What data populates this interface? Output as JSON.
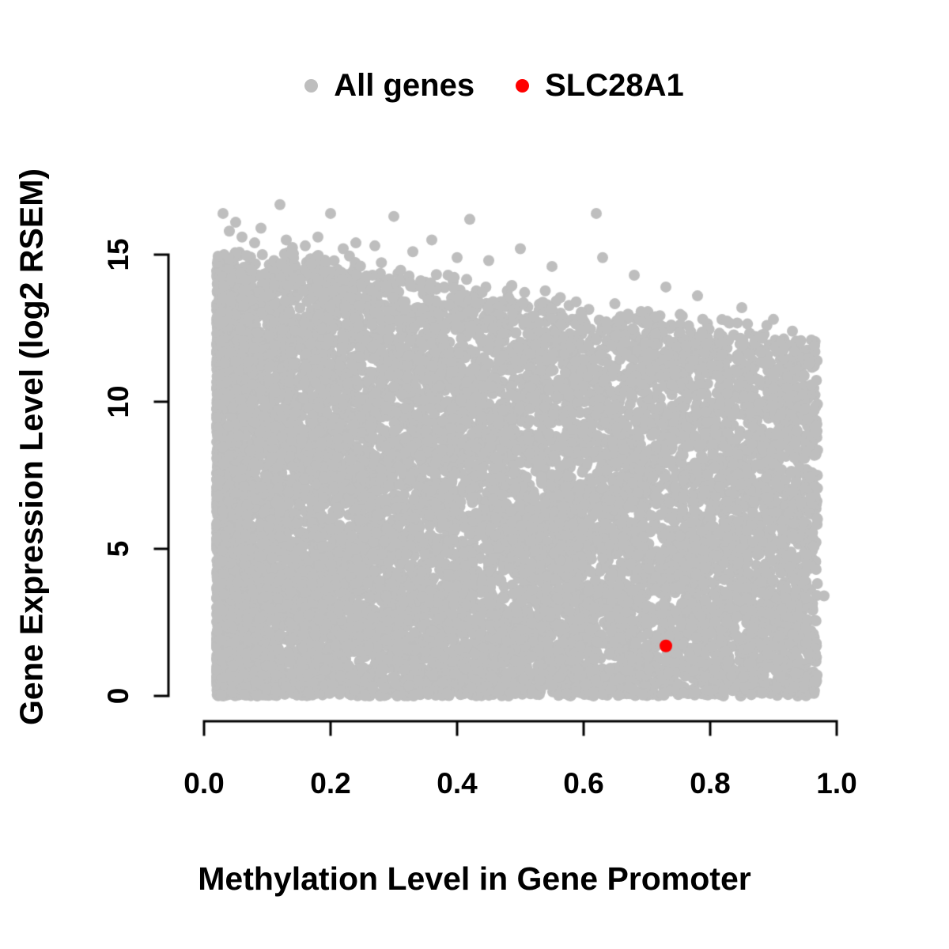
{
  "chart_data": {
    "type": "scatter",
    "title": "",
    "xlabel": "Methylation Level in Gene Promoter",
    "ylabel": "Gene Expression Level (log2 RSEM)",
    "xlim": [
      0,
      1
    ],
    "ylim": [
      0,
      17
    ],
    "grid": false,
    "x_ticks": [
      0,
      0.2,
      0.4,
      0.6,
      0.8,
      1.0
    ],
    "x_tick_labels": [
      "0.0",
      "0.2",
      "0.4",
      "0.6",
      "0.8",
      "1.0"
    ],
    "y_ticks": [
      0,
      5,
      10,
      15
    ],
    "y_tick_labels": [
      "0",
      "5",
      "10",
      "15"
    ],
    "axis_color": "#000000",
    "legend": {
      "position": "top",
      "entries": [
        {
          "label": "All genes",
          "color": "#bebebe"
        },
        {
          "label": "SLC28A1",
          "color": "#ff0000"
        }
      ]
    },
    "series": [
      {
        "name": "All genes",
        "color": "#bebebe",
        "type": "dense-cloud",
        "n_points": 12000,
        "seed": 42,
        "x_range": [
          0.02,
          0.97
        ],
        "envelope_x": [
          0,
          0.15,
          0.3,
          0.45,
          0.6,
          0.8,
          0.97
        ],
        "envelope_y": [
          15.2,
          15.0,
          14.6,
          14.0,
          13.3,
          12.7,
          12.1
        ],
        "outliers": [
          [
            0.03,
            16.4
          ],
          [
            0.04,
            15.8
          ],
          [
            0.05,
            16.1
          ],
          [
            0.06,
            15.6
          ],
          [
            0.08,
            15.4
          ],
          [
            0.09,
            15.9
          ],
          [
            0.12,
            16.7
          ],
          [
            0.13,
            15.5
          ],
          [
            0.16,
            15.3
          ],
          [
            0.18,
            15.6
          ],
          [
            0.2,
            16.4
          ],
          [
            0.22,
            15.2
          ],
          [
            0.24,
            15.4
          ],
          [
            0.27,
            15.3
          ],
          [
            0.3,
            16.3
          ],
          [
            0.33,
            15.1
          ],
          [
            0.36,
            15.5
          ],
          [
            0.4,
            14.9
          ],
          [
            0.42,
            16.2
          ],
          [
            0.45,
            14.8
          ],
          [
            0.5,
            15.2
          ],
          [
            0.55,
            14.6
          ],
          [
            0.62,
            16.4
          ],
          [
            0.63,
            14.9
          ],
          [
            0.68,
            14.3
          ],
          [
            0.73,
            13.9
          ],
          [
            0.78,
            13.6
          ],
          [
            0.85,
            13.2
          ],
          [
            0.9,
            12.8
          ],
          [
            0.93,
            12.4
          ],
          [
            0.96,
            12.1
          ],
          [
            0.965,
            11.9
          ],
          [
            0.98,
            3.4
          ]
        ]
      },
      {
        "name": "SLC28A1",
        "color": "#ff0000",
        "points": [
          [
            0.73,
            1.7
          ]
        ]
      }
    ]
  }
}
